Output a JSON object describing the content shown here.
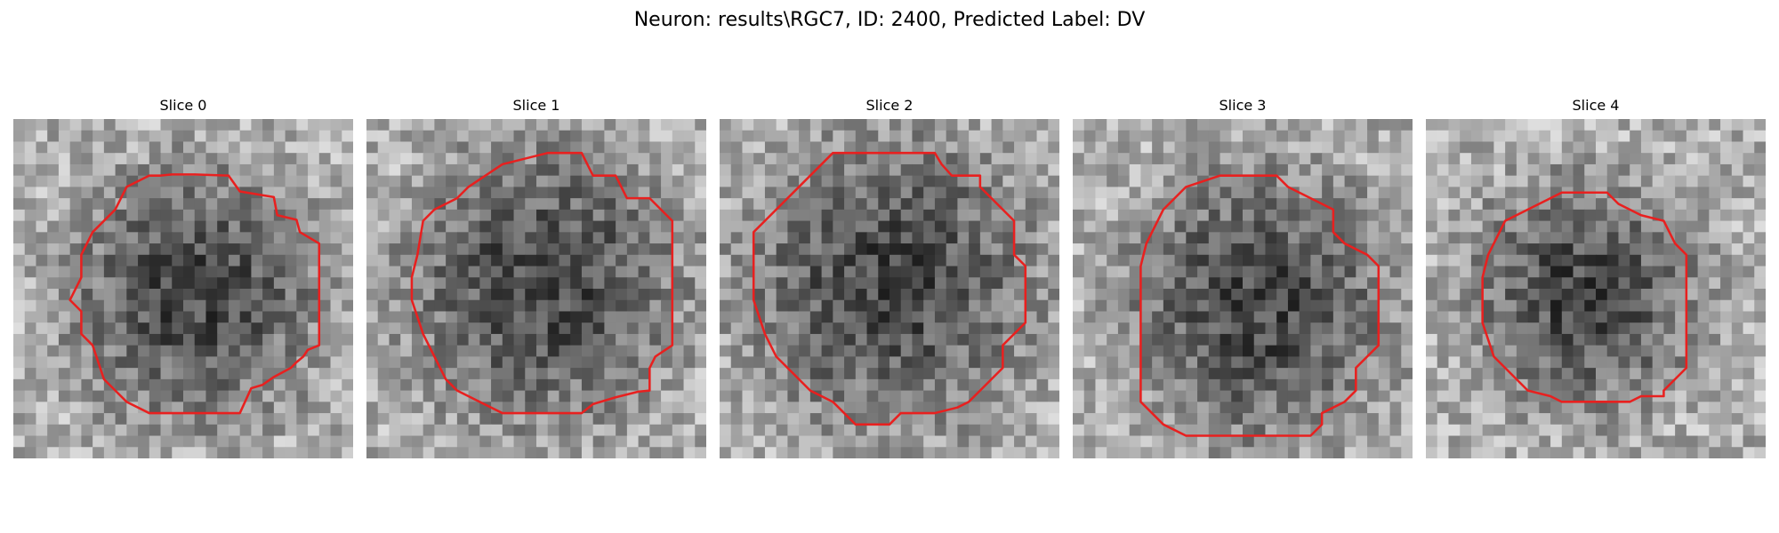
{
  "figure": {
    "title": "Neuron: results\\RGC7, ID: 2400, Predicted Label: DV"
  },
  "colors": {
    "contour": "#e8201f",
    "image_colormap": "gray"
  },
  "panels": [
    {
      "label": "Slice 0"
    },
    {
      "label": "Slice 1"
    },
    {
      "label": "Slice 2"
    },
    {
      "label": "Slice 3"
    },
    {
      "label": "Slice 4"
    }
  ]
}
